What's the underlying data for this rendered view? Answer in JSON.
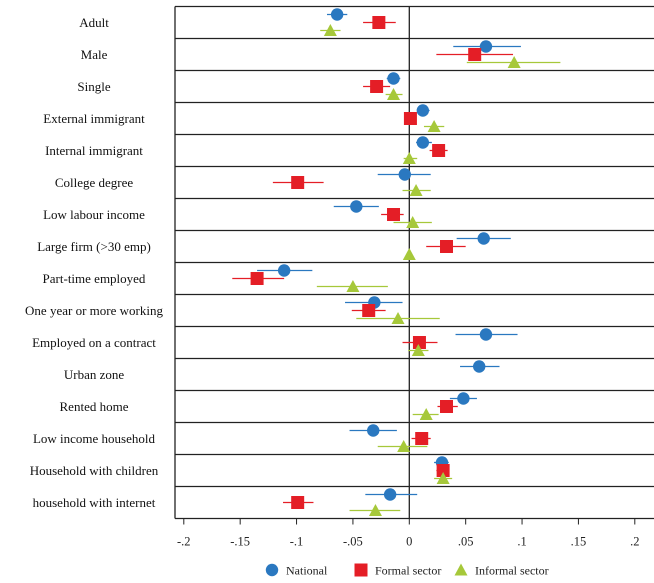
{
  "chart_data": {
    "type": "scatter",
    "subtype": "coefficient-plot-with-confidence-intervals",
    "orientation": "horizontal",
    "xlim": [
      -0.21,
      0.21
    ],
    "xticks": [
      -0.2,
      -0.15,
      -0.1,
      -0.05,
      0,
      0.05,
      0.1,
      0.15,
      0.2
    ],
    "xtick_labels": [
      "-.2",
      "-.15",
      "-.1",
      "-.05",
      "0",
      ".05",
      ".1",
      ".15",
      ".2"
    ],
    "reference_line": 0,
    "legend_position": "bottom",
    "categories": [
      "Adult",
      "Male",
      "Single",
      "External immigrant",
      "Internal immigrant",
      "College degree",
      "Low labour income",
      "Large firm (>30 emp)",
      "Part-time employed",
      "One year or more working",
      "Employed on a contract",
      "Urban zone",
      "Rented home",
      "Low income household",
      "Household with children",
      "household with internet"
    ],
    "series": [
      {
        "name": "National",
        "marker": "circle",
        "color": "#2a78c0",
        "values": [
          -0.064,
          0.068,
          -0.014,
          0.012,
          0.012,
          -0.004,
          -0.047,
          0.066,
          -0.111,
          -0.031,
          0.068,
          0.062,
          0.048,
          -0.032,
          0.029,
          -0.017
        ],
        "ci_low": [
          -0.073,
          0.039,
          -0.02,
          0.007,
          0.006,
          -0.028,
          -0.067,
          0.042,
          -0.135,
          -0.057,
          0.041,
          0.045,
          0.036,
          -0.053,
          0.022,
          -0.039
        ],
        "ci_high": [
          -0.055,
          0.099,
          -0.008,
          0.018,
          0.02,
          0.019,
          -0.027,
          0.09,
          -0.086,
          -0.006,
          0.096,
          0.08,
          0.06,
          -0.011,
          0.035,
          0.007
        ]
      },
      {
        "name": "Formal sector",
        "marker": "square",
        "color": "#e41e26",
        "values": [
          -0.027,
          0.058,
          -0.029,
          0.001,
          0.026,
          -0.099,
          -0.014,
          0.033,
          -0.135,
          -0.036,
          0.009,
          null,
          0.033,
          0.011,
          0.03,
          -0.099
        ],
        "ci_low": [
          -0.041,
          0.024,
          -0.041,
          0.0,
          0.018,
          -0.121,
          -0.025,
          0.015,
          -0.157,
          -0.051,
          -0.006,
          null,
          0.025,
          0.002,
          0.024,
          -0.112
        ],
        "ci_high": [
          -0.012,
          0.092,
          -0.017,
          0.003,
          0.034,
          -0.076,
          -0.005,
          0.05,
          -0.111,
          -0.021,
          0.025,
          null,
          0.043,
          0.019,
          0.035,
          -0.085
        ]
      },
      {
        "name": "Informal sector",
        "marker": "triangle",
        "color": "#a6c83a",
        "values": [
          -0.07,
          0.093,
          -0.014,
          0.022,
          0.0,
          0.006,
          0.003,
          0.0,
          -0.05,
          -0.01,
          0.008,
          null,
          0.015,
          -0.005,
          0.03,
          -0.03
        ],
        "ci_low": [
          -0.079,
          0.051,
          -0.021,
          0.013,
          -0.005,
          -0.006,
          -0.014,
          0.0,
          -0.082,
          -0.047,
          -0.001,
          null,
          0.003,
          -0.028,
          0.022,
          -0.053
        ],
        "ci_high": [
          -0.061,
          0.134,
          -0.006,
          0.031,
          0.007,
          0.019,
          0.02,
          0.0,
          -0.019,
          0.027,
          0.017,
          null,
          0.026,
          0.016,
          0.038,
          -0.008
        ]
      }
    ]
  }
}
